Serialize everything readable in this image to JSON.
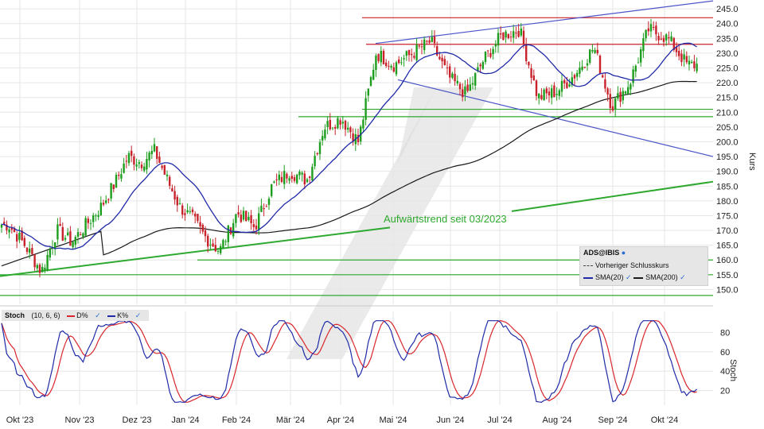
{
  "chart_data": [
    {
      "type": "candlestick",
      "symbol": "ADS@IBIS",
      "ylabel": "Kurs",
      "ylim": [
        145,
        248
      ],
      "y_ticks": [
        150,
        155,
        160,
        165,
        170,
        175,
        180,
        185,
        190,
        195,
        200,
        205,
        210,
        215,
        220,
        225,
        230,
        235,
        240,
        245
      ],
      "x_ticks": [
        "Okt '23",
        "Nov '23",
        "Dez '23",
        "Jan '24",
        "Feb '24",
        "Mär '24",
        "Apr '24",
        "Mai '24",
        "Jun '24",
        "Jul '24",
        "Aug '24",
        "Sep '24",
        "Okt '24"
      ],
      "close_path": [
        [
          "Okt '23",
          172
        ],
        [
          "Okt '23",
          165
        ],
        [
          "Okt '23",
          156
        ],
        [
          "Nov '23",
          170
        ],
        [
          "Nov '23",
          166
        ],
        [
          "Nov '23",
          172
        ],
        [
          "Nov '23",
          178
        ],
        [
          "Dez '23",
          186
        ],
        [
          "Dez '23",
          195
        ],
        [
          "Dez '23",
          193
        ],
        [
          "Dez '23",
          197
        ],
        [
          "Jan '24",
          187
        ],
        [
          "Jan '24",
          178
        ],
        [
          "Jan '24",
          174
        ],
        [
          "Jan '24",
          168
        ],
        [
          "Feb '24",
          163
        ],
        [
          "Feb '24",
          176
        ],
        [
          "Feb '24",
          171
        ],
        [
          "Mär '24",
          185
        ],
        [
          "Mär '24",
          190
        ],
        [
          "Mär '24",
          187
        ],
        [
          "Apr '24",
          205
        ],
        [
          "Apr '24",
          208
        ],
        [
          "Apr '24",
          200
        ],
        [
          "Mai '24",
          230
        ],
        [
          "Mai '24",
          226
        ],
        [
          "Mai '24",
          230
        ],
        [
          "Jun '24",
          234
        ],
        [
          "Jun '24",
          222
        ],
        [
          "Jun '24",
          216
        ],
        [
          "Jul '24",
          228
        ],
        [
          "Jul '24",
          236
        ],
        [
          "Jul '24",
          238
        ],
        [
          "Aug '24",
          215
        ],
        [
          "Aug '24",
          217
        ],
        [
          "Aug '24",
          223
        ],
        [
          "Sep '24",
          232
        ],
        [
          "Sep '24",
          212
        ],
        [
          "Sep '24",
          220
        ],
        [
          "Okt '24",
          238
        ],
        [
          "Okt '24",
          235
        ],
        [
          "Okt '24",
          226
        ]
      ],
      "sma20_color": "#1f2aa8",
      "sma200_color": "#1a1a1a",
      "up_color": "#1e9e1e",
      "down_color": "#c8232c",
      "horizontal_lines": [
        {
          "value": 242,
          "color": "#c8232c"
        },
        {
          "value": 233,
          "color": "#c8232c"
        },
        {
          "value": 211,
          "color": "#2ea82e"
        },
        {
          "value": 208.5,
          "color": "#2ea82e"
        },
        {
          "value": 160,
          "color": "#2ea82e"
        },
        {
          "value": 155,
          "color": "#2ea82e"
        },
        {
          "value": 148,
          "color": "#2ea82e"
        }
      ],
      "annotation": "Aufwärtstrend seit 03/2023",
      "legend": {
        "title": "ADS@IBIS",
        "items": [
          "Vorheriger Schlusskurs",
          "SMA(20)",
          "SMA(200)"
        ]
      }
    },
    {
      "type": "line",
      "title": "Stoch",
      "params": "(10, 6, 6)",
      "ylabel": "Stoch",
      "ylim": [
        5,
        95
      ],
      "y_ticks": [
        20,
        40,
        60,
        80
      ],
      "series": [
        {
          "name": "K%",
          "color": "#1f2aa8"
        },
        {
          "name": "D%",
          "color": "#d9262c"
        }
      ]
    }
  ],
  "colors": {
    "grid": "#e6e6e6",
    "channel": "#4a55c8",
    "trend": "#2ea82e",
    "watermark": "#d9d9d9"
  }
}
